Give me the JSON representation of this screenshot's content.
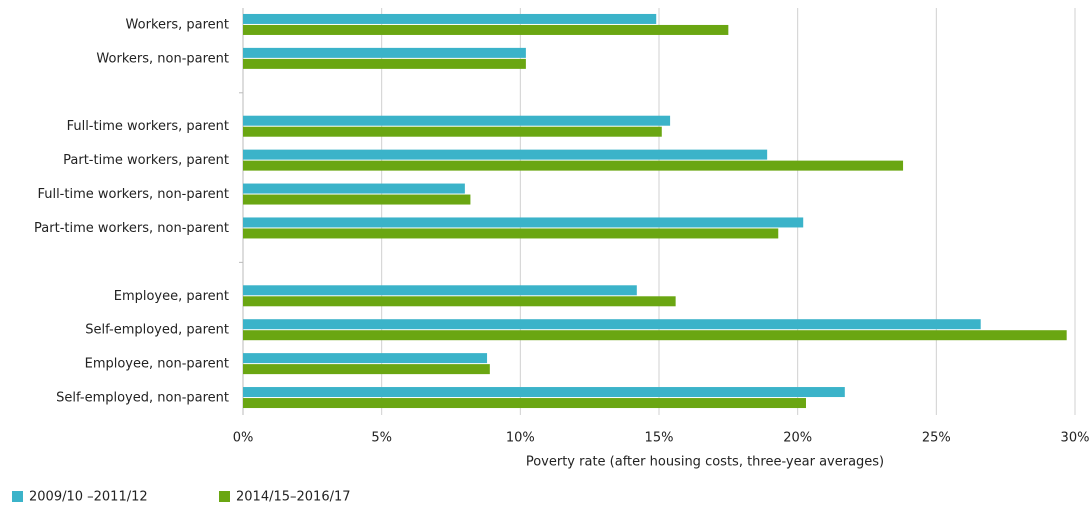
{
  "chart_data": {
    "type": "hbar",
    "x_label": "Poverty rate (after housing costs, three-year averages)",
    "categories": [
      "Workers, parent",
      "Workers, non-parent",
      null,
      "Full-time workers, parent",
      "Part-time workers, parent",
      "Full-time workers, non-parent",
      "Part-time workers, non-parent",
      null,
      "Employee, parent",
      "Self-employed, parent",
      "Employee, non-parent",
      "Self-employed, non-parent"
    ],
    "series": [
      {
        "name": "2009/10 –2011/12",
        "color": "#3bb3c9",
        "values": [
          14.9,
          10.2,
          null,
          15.4,
          18.9,
          8.0,
          20.2,
          null,
          14.2,
          26.6,
          8.8,
          21.7
        ]
      },
      {
        "name": "2014/15–2016/17",
        "color": "#6aa612",
        "values": [
          17.5,
          10.2,
          null,
          15.1,
          23.8,
          8.2,
          19.3,
          null,
          15.6,
          29.7,
          8.9,
          20.3
        ]
      }
    ],
    "xlim": [
      0,
      30
    ],
    "xticks": [
      {
        "value": 0,
        "label": "0%"
      },
      {
        "value": 5,
        "label": "5%"
      },
      {
        "value": 10,
        "label": "10%"
      },
      {
        "value": 15,
        "label": "15%"
      },
      {
        "value": 20,
        "label": "20%"
      },
      {
        "value": 25,
        "label": "25%"
      },
      {
        "value": 30,
        "label": "30%"
      }
    ],
    "grid": true,
    "legend": "bottom-left"
  }
}
